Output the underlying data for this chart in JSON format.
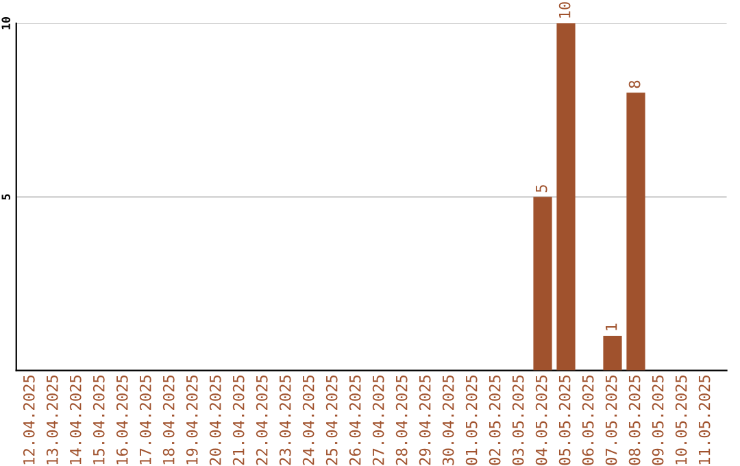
{
  "chart_data": {
    "type": "bar",
    "categories": [
      "12.04.2025",
      "13.04.2025",
      "14.04.2025",
      "15.04.2025",
      "16.04.2025",
      "17.04.2025",
      "18.04.2025",
      "19.04.2025",
      "20.04.2025",
      "21.04.2025",
      "22.04.2025",
      "23.04.2025",
      "24.04.2025",
      "25.04.2025",
      "26.04.2025",
      "27.04.2025",
      "28.04.2025",
      "29.04.2025",
      "30.04.2025",
      "01.05.2025",
      "02.05.2025",
      "03.05.2025",
      "04.05.2025",
      "05.05.2025",
      "06.05.2025",
      "07.05.2025",
      "08.05.2025",
      "09.05.2025",
      "10.05.2025",
      "11.05.2025"
    ],
    "values": [
      0,
      0,
      0,
      0,
      0,
      0,
      0,
      0,
      0,
      0,
      0,
      0,
      0,
      0,
      0,
      0,
      0,
      0,
      0,
      0,
      0,
      0,
      5,
      10,
      0,
      1,
      8,
      0,
      0,
      0
    ],
    "value_labels": [
      null,
      null,
      null,
      null,
      null,
      null,
      null,
      null,
      null,
      null,
      null,
      null,
      null,
      null,
      null,
      null,
      null,
      null,
      null,
      null,
      null,
      null,
      "5",
      "10",
      null,
      "1",
      "8",
      null,
      null,
      null
    ],
    "color": "#a0522d",
    "ylim": [
      0,
      10
    ],
    "yticks": [
      5,
      10
    ],
    "grid": "y"
  }
}
